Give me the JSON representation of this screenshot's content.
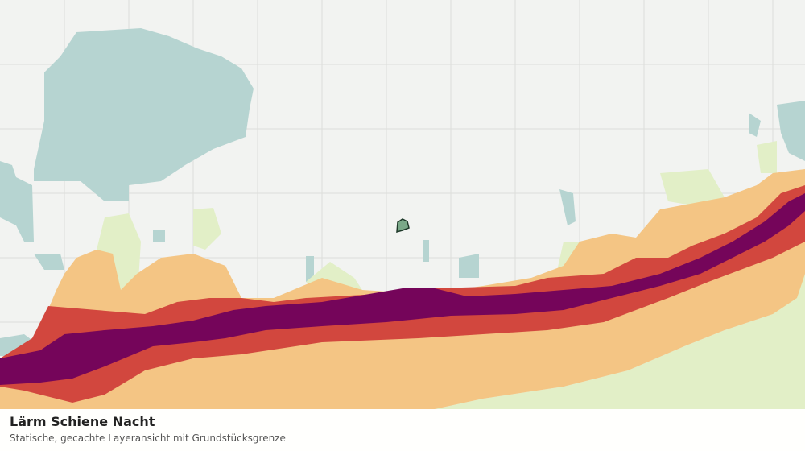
{
  "caption": {
    "title": "Lärm Schiene Nacht",
    "subtitle": "Statische, gecachte Layeransicht mit Grundstücksgrenze"
  }
}
